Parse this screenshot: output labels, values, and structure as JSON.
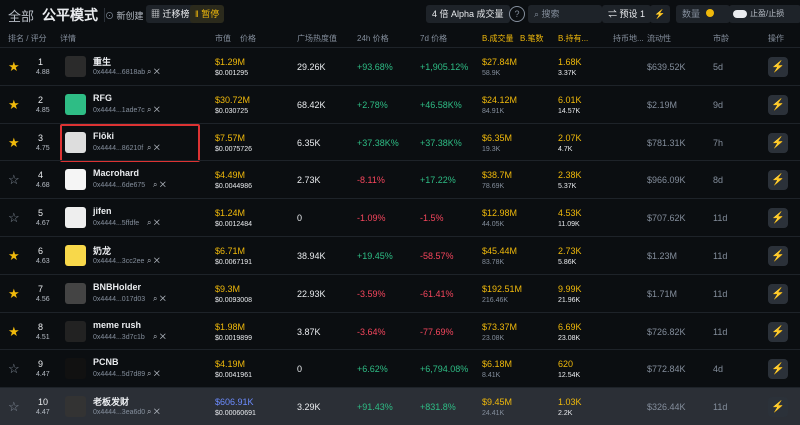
{
  "header": {
    "tabs": [
      "全部",
      "公平模式"
    ],
    "new_button": "新创建",
    "migrate_button": "迁移榜",
    "pause_button": "暂停",
    "alpha_button": "4 倍 Alpha 成交量",
    "search_placeholder": "搜索",
    "preset_button": "预设 1",
    "amount_label": "数量",
    "tp_sl_label": "止盈/止损"
  },
  "table": {
    "columns": [
      "排名 / 评分",
      "详情",
      "市值",
      "价格",
      "广场热度值",
      "24h 价格",
      "7d 价格",
      "B.成交量",
      "B.笔数",
      "B.持有...",
      "持币地...",
      "流动性",
      "市龄",
      "操作"
    ],
    "rows": [
      {
        "rank": "1",
        "score": "4.88",
        "name": "重生",
        "address": "0x4444...6818ab",
        "market_cap": "$1.29M",
        "price": "$0.001295",
        "heat": "29.26K",
        "change_24h": "+93.68%",
        "change_7d": "+1,905.12%",
        "volume": "$27.84M",
        "volume_sub": "58.9K",
        "holders": "1.68K",
        "holders_sub": "3.37K",
        "liquidity": "$639.52K",
        "age": "5d",
        "starred": true
      },
      {
        "rank": "2",
        "score": "4.85",
        "name": "RFG",
        "address": "0x4444...1ade7c",
        "market_cap": "$30.72M",
        "price": "$0.030725",
        "heat": "68.42K",
        "change_24h": "+2.78%",
        "change_7d": "+46.58K%",
        "volume": "$24.12M",
        "volume_sub": "84.91K",
        "holders": "6.01K",
        "holders_sub": "14.57K",
        "liquidity": "$2.19M",
        "age": "9d",
        "starred": true
      },
      {
        "rank": "3",
        "score": "4.75",
        "name": "Flōki",
        "address": "0x4444...86210f",
        "market_cap": "$7.57M",
        "price": "$0.0075726",
        "heat": "6.35K",
        "change_24h": "+37.38K%",
        "change_7d": "+37.38K%",
        "volume": "$6.35M",
        "volume_sub": "19.3K",
        "holders": "2.07K",
        "holders_sub": "4.7K",
        "liquidity": "$781.31K",
        "age": "7h",
        "starred": true,
        "highlighted": true
      },
      {
        "rank": "4",
        "score": "4.68",
        "name": "Macrohard",
        "address": "0x4444...6de675",
        "market_cap": "$4.49M",
        "price": "$0.0044986",
        "heat": "2.73K",
        "change_24h": "-8.11%",
        "change_7d": "+17.22%",
        "volume": "$38.7M",
        "volume_sub": "78.69K",
        "holders": "2.38K",
        "holders_sub": "5.37K",
        "liquidity": "$966.09K",
        "age": "8d",
        "starred": false
      },
      {
        "rank": "5",
        "score": "4.67",
        "name": "jifen",
        "address": "0x4444...5ffdfe",
        "market_cap": "$1.24M",
        "price": "$0.0012484",
        "heat": "0",
        "change_24h": "-1.09%",
        "change_7d": "-1.5%",
        "volume": "$12.98M",
        "volume_sub": "44.05K",
        "holders": "4.53K",
        "holders_sub": "11.09K",
        "liquidity": "$707.62K",
        "age": "11d",
        "starred": false
      },
      {
        "rank": "6",
        "score": "4.63",
        "name": "奶龙",
        "address": "0x4444...3cc2ee",
        "market_cap": "$6.71M",
        "price": "$0.0067191",
        "heat": "38.94K",
        "change_24h": "+19.45%",
        "change_7d": "-58.57%",
        "volume": "$45.44M",
        "volume_sub": "83.78K",
        "holders": "2.73K",
        "holders_sub": "5.86K",
        "liquidity": "$1.23M",
        "age": "11d",
        "starred": true
      },
      {
        "rank": "7",
        "score": "4.56",
        "name": "BNBHolder",
        "address": "0x4444...017d03",
        "market_cap": "$9.3M",
        "price": "$0.0093008",
        "heat": "22.93K",
        "change_24h": "-3.59%",
        "change_7d": "-61.41%",
        "volume": "$192.51M",
        "volume_sub": "216.46K",
        "holders": "9.99K",
        "holders_sub": "21.96K",
        "liquidity": "$1.71M",
        "age": "11d",
        "starred": true
      },
      {
        "rank": "8",
        "score": "4.51",
        "name": "meme rush",
        "address": "0x4444...3d7c1b",
        "market_cap": "$1.98M",
        "price": "$0.0019899",
        "heat": "3.87K",
        "change_24h": "-3.64%",
        "change_7d": "-77.69%",
        "volume": "$73.37M",
        "volume_sub": "23.08K",
        "holders": "6.69K",
        "holders_sub": "23.08K",
        "liquidity": "$726.82K",
        "age": "11d",
        "starred": true
      },
      {
        "rank": "9",
        "score": "4.47",
        "name": "PCNB",
        "address": "0x4444...5d7d89",
        "market_cap": "$4.19M",
        "price": "$0.0041961",
        "heat": "0",
        "change_24h": "+6.62%",
        "change_7d": "+6,794.08%",
        "volume": "$6.18M",
        "volume_sub": "8.41K",
        "holders": "620",
        "holders_sub": "12.54K",
        "liquidity": "$772.84K",
        "age": "4d",
        "starred": false
      },
      {
        "rank": "10",
        "score": "4.47",
        "name": "老板发财",
        "address": "0x4444...3ea6d0",
        "market_cap": "$606.91K",
        "price": "$0.00060691",
        "heat": "3.29K",
        "change_24h": "+91.43%",
        "change_7d": "+831.8%",
        "volume": "$9.45M",
        "volume_sub": "24.41K",
        "holders": "1.03K",
        "holders_sub": "2.2K",
        "liquidity": "$326.44K",
        "age": "11d",
        "starred": false,
        "hovered": true
      }
    ]
  }
}
